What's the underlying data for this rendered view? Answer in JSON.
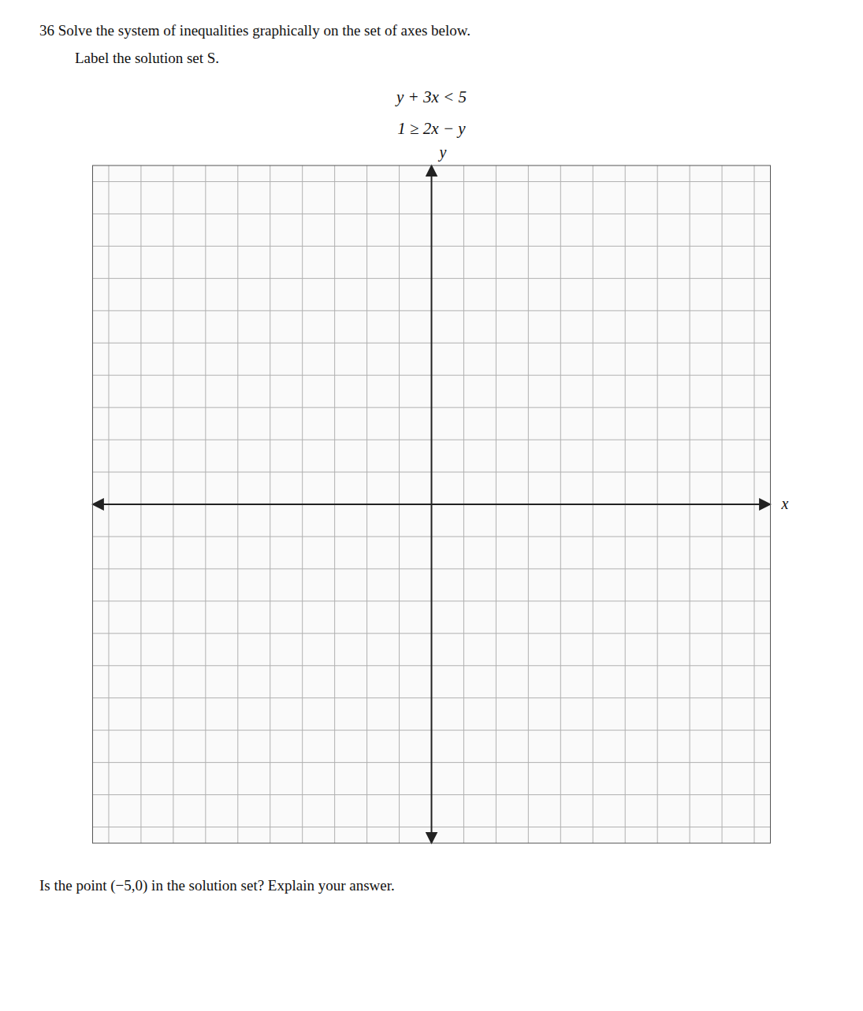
{
  "chart_data": {
    "type": "coordinate_grid",
    "title": "36  Solve the system of inequalities graphically on the set of axes below.",
    "subtitle": "Label the solution set S.",
    "annotations": [
      "y + 3x < 5",
      "1 ≥ 2x − y",
      "Is the point (−5,0) in the solution set? Explain your answer."
    ],
    "x_label": "x",
    "y_label": "y",
    "xlim": [
      -10.5,
      10.5
    ],
    "ylim": [
      -10.5,
      10.5
    ],
    "xticks": [
      -10,
      -9,
      -8,
      -7,
      -6,
      -5,
      -4,
      -3,
      -2,
      -1,
      0,
      1,
      2,
      3,
      4,
      5,
      6,
      7,
      8,
      9,
      10
    ],
    "yticks": [
      -10,
      -9,
      -8,
      -7,
      -6,
      -5,
      -4,
      -3,
      -2,
      -1,
      0,
      1,
      2,
      3,
      4,
      5,
      6,
      7,
      8,
      9,
      10
    ],
    "grid": true,
    "tick_labels": false
  }
}
